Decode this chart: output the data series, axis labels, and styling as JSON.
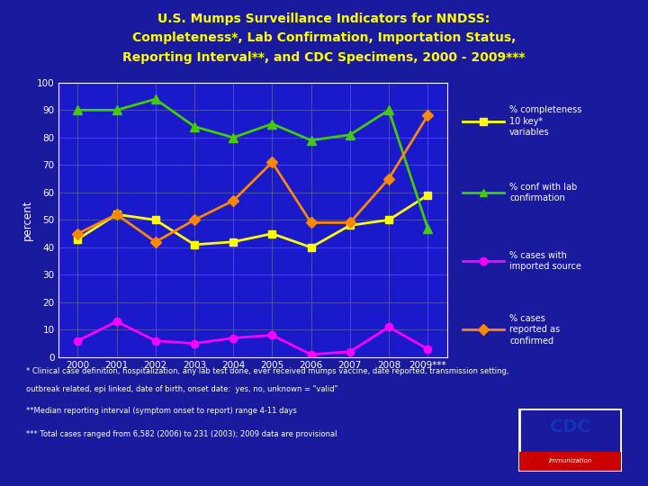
{
  "title_line1": "U.S. Mumps Surveillance Indicators for NNDSS:",
  "title_line2": "Completeness*, Lab Confirmation, Importation Status,",
  "title_line3": "Reporting Interval**, and CDC Specimens, 2000 - 2009***",
  "background_color": "#1A1A9E",
  "plot_background_color": "#1A1ACC",
  "title_color": "#FFFF00",
  "text_color": "#FFFFFF",
  "ylabel": "percent",
  "ylim": [
    0,
    100
  ],
  "years": [
    "2000",
    "2001",
    "2002",
    "2003",
    "2004",
    "2005",
    "2006",
    "2007",
    "2008",
    "2009***"
  ],
  "completeness_data": [
    43,
    52,
    50,
    41,
    42,
    45,
    40,
    48,
    50,
    59
  ],
  "completeness_color": "#FFFF00",
  "completeness_marker": "s",
  "completeness_label": "% completeness\n10 key*\nvariables",
  "lab_conf_data": [
    90,
    90,
    94,
    84,
    80,
    85,
    79,
    81,
    90,
    47
  ],
  "lab_conf_color": "#44CC00",
  "lab_conf_marker": "^",
  "lab_conf_label": "% conf with lab\nconfirmation",
  "imported_data": [
    6,
    13,
    6,
    5,
    7,
    8,
    1,
    2,
    11,
    3
  ],
  "imported_color": "#FF00FF",
  "imported_marker": "o",
  "imported_label": "% cases with\nimported source",
  "confirmed_data": [
    45,
    52,
    42,
    50,
    57,
    71,
    49,
    49,
    65,
    88
  ],
  "confirmed_color": "#FF8800",
  "confirmed_marker": "D",
  "confirmed_label": "% cases\nreported as\nconfirmed",
  "footnote1": "* Clinical case definition, hospitalization, any lab test done, ever received mumps vaccine, date reported, transmission setting,",
  "footnote1b": "outbreak related, epi linked, date of birth, onset date:  yes, no, unknown = \"valid\"",
  "footnote2": "**Median reporting interval (symptom onset to report) range 4-11 days",
  "footnote3": "*** Total cases ranged from 6,582 (2006) to 231 (2003); 2009 data are provisional"
}
